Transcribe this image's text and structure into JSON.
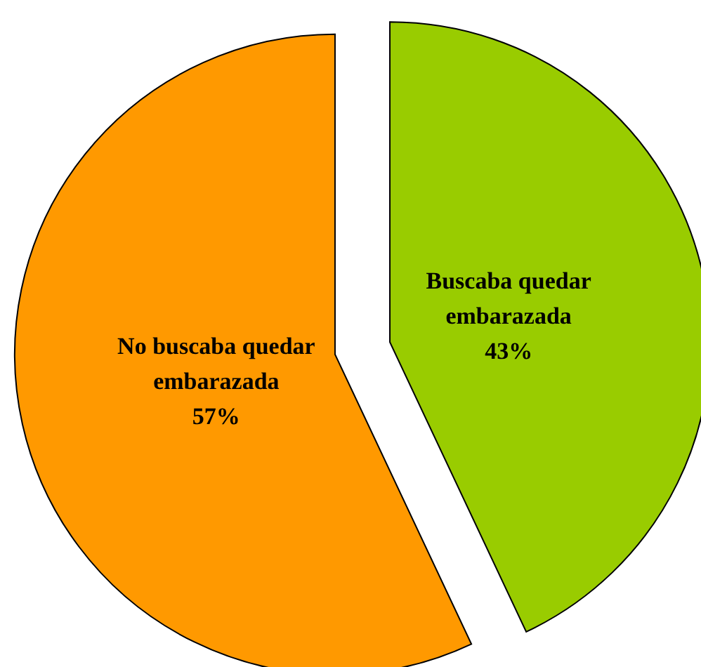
{
  "chart_data": {
    "type": "pie",
    "categories": [
      "Buscaba quedar embarazada",
      "No buscaba quedar embarazada"
    ],
    "values": [
      43,
      57
    ],
    "colors": [
      "#99cc00",
      "#ff9900"
    ],
    "value_labels": [
      "43%",
      "57%"
    ]
  }
}
